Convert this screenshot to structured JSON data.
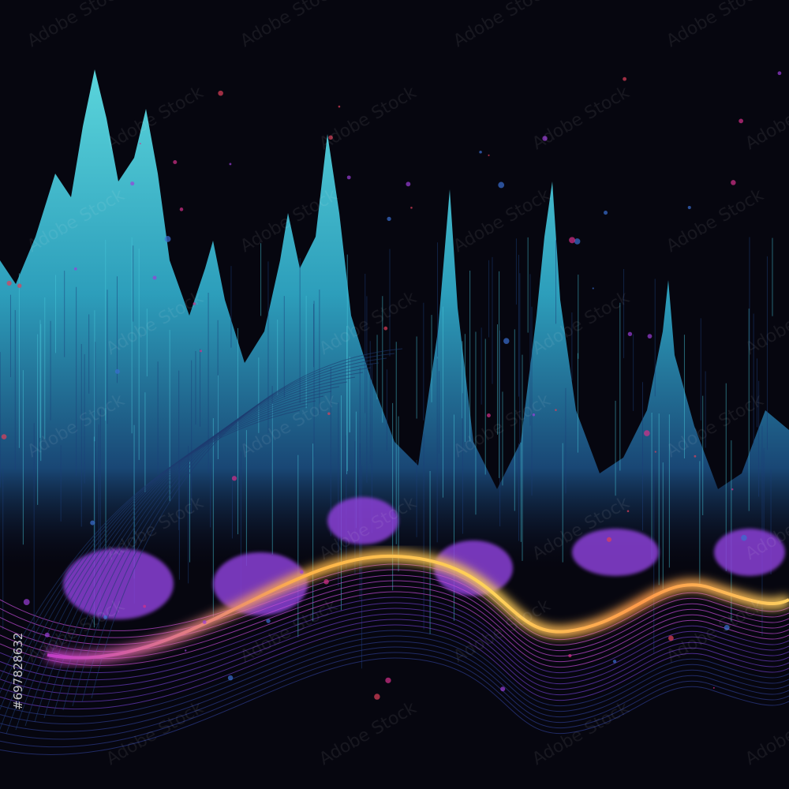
{
  "watermark": {
    "text": "Adobe Stock",
    "id": "#697828632"
  }
}
